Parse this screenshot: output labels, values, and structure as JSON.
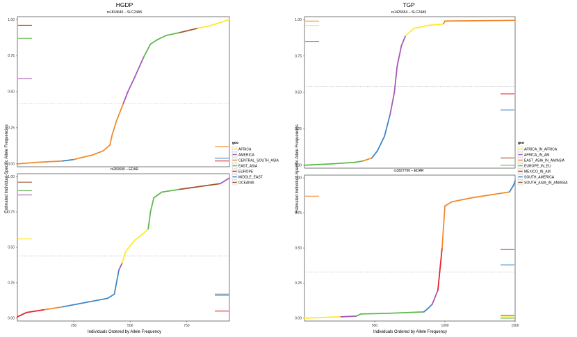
{
  "chart_data": [
    {
      "type": "scatter",
      "title": "HGDP",
      "xlabel": "Individuals Ordered by Allele Frequency",
      "ylabel": "Estimated Individual-Specific Allele Frequencies",
      "xlim": [
        0,
        940
      ],
      "xticks": [
        250,
        500,
        750
      ],
      "ylim": [
        -0.02,
        1.02
      ],
      "yticks": [
        0.0,
        0.25,
        0.5,
        0.75,
        1.0
      ],
      "ytick_labels": [
        "0.00",
        "0.25",
        "0.50",
        "0.75",
        "1.00"
      ],
      "legend": {
        "title": "geo",
        "entries": [
          {
            "name": "AFRICA",
            "color": "#FFEA2B"
          },
          {
            "name": "AMERICA",
            "color": "#A659B8"
          },
          {
            "name": "CENTRAL_SOUTH_ASIA",
            "color": "#F08A2D"
          },
          {
            "name": "EAST_ASIA",
            "color": "#5FB84C"
          },
          {
            "name": "EUROPE",
            "color": "#E4242C"
          },
          {
            "name": "MIDDLE_EAST",
            "color": "#3E86C5"
          },
          {
            "name": "OCEANIA",
            "color": "#A2562F"
          }
        ]
      },
      "panels": [
        {
          "subtitle": "rs1834640 – SLC24A5",
          "mean_line": 0.42,
          "curve": [
            {
              "x": 0,
              "y": 0.0,
              "c": "MIDDLE_EAST"
            },
            {
              "x": 80,
              "y": 0.01,
              "c": "CENTRAL_SOUTH_ASIA"
            },
            {
              "x": 200,
              "y": 0.02,
              "c": "CENTRAL_SOUTH_ASIA"
            },
            {
              "x": 250,
              "y": 0.03,
              "c": "MIDDLE_EAST"
            },
            {
              "x": 300,
              "y": 0.05,
              "c": "CENTRAL_SOUTH_ASIA"
            },
            {
              "x": 330,
              "y": 0.06,
              "c": "CENTRAL_SOUTH_ASIA"
            },
            {
              "x": 380,
              "y": 0.09,
              "c": "CENTRAL_SOUTH_ASIA"
            },
            {
              "x": 410,
              "y": 0.13,
              "c": "CENTRAL_SOUTH_ASIA"
            },
            {
              "x": 420,
              "y": 0.2,
              "c": "CENTRAL_SOUTH_ASIA"
            },
            {
              "x": 440,
              "y": 0.3,
              "c": "CENTRAL_SOUTH_ASIA"
            },
            {
              "x": 470,
              "y": 0.42,
              "c": "CENTRAL_SOUTH_ASIA"
            },
            {
              "x": 490,
              "y": 0.5,
              "c": "AMERICA"
            },
            {
              "x": 520,
              "y": 0.6,
              "c": "AMERICA"
            },
            {
              "x": 560,
              "y": 0.74,
              "c": "AMERICA"
            },
            {
              "x": 590,
              "y": 0.83,
              "c": "EAST_ASIA"
            },
            {
              "x": 620,
              "y": 0.86,
              "c": "EAST_ASIA"
            },
            {
              "x": 660,
              "y": 0.89,
              "c": "EAST_ASIA"
            },
            {
              "x": 720,
              "y": 0.91,
              "c": "EAST_ASIA"
            },
            {
              "x": 800,
              "y": 0.94,
              "c": "OCEANIA"
            },
            {
              "x": 860,
              "y": 0.96,
              "c": "AFRICA"
            },
            {
              "x": 940,
              "y": 1.0,
              "c": "AFRICA"
            }
          ],
          "means": [
            {
              "group": "AFRICA",
              "y": 0.96,
              "side": "left"
            },
            {
              "group": "OCEANIA",
              "y": 0.96,
              "side": "left"
            },
            {
              "group": "EAST_ASIA",
              "y": 0.87,
              "side": "left"
            },
            {
              "group": "AMERICA",
              "y": 0.59,
              "side": "left"
            },
            {
              "group": "CENTRAL_SOUTH_ASIA",
              "y": 0.12,
              "side": "right"
            },
            {
              "group": "MIDDLE_EAST",
              "y": 0.04,
              "side": "right"
            },
            {
              "group": "EUROPE",
              "y": 0.02,
              "side": "right"
            }
          ]
        },
        {
          "subtitle": "rs260690 – EDAR",
          "mean_line": 0.44,
          "curve": [
            {
              "x": 0,
              "y": 0.01,
              "c": "EUROPE"
            },
            {
              "x": 40,
              "y": 0.04,
              "c": "EUROPE"
            },
            {
              "x": 120,
              "y": 0.06,
              "c": "EUROPE"
            },
            {
              "x": 200,
              "y": 0.08,
              "c": "CENTRAL_SOUTH_ASIA"
            },
            {
              "x": 300,
              "y": 0.11,
              "c": "MIDDLE_EAST"
            },
            {
              "x": 400,
              "y": 0.14,
              "c": "MIDDLE_EAST"
            },
            {
              "x": 430,
              "y": 0.17,
              "c": "MIDDLE_EAST"
            },
            {
              "x": 450,
              "y": 0.34,
              "c": "MIDDLE_EAST"
            },
            {
              "x": 465,
              "y": 0.39,
              "c": "AMERICA"
            },
            {
              "x": 480,
              "y": 0.47,
              "c": "AFRICA"
            },
            {
              "x": 520,
              "y": 0.55,
              "c": "AFRICA"
            },
            {
              "x": 560,
              "y": 0.6,
              "c": "AFRICA"
            },
            {
              "x": 580,
              "y": 0.63,
              "c": "AFRICA"
            },
            {
              "x": 590,
              "y": 0.75,
              "c": "EAST_ASIA"
            },
            {
              "x": 605,
              "y": 0.85,
              "c": "EAST_ASIA"
            },
            {
              "x": 640,
              "y": 0.89,
              "c": "EAST_ASIA"
            },
            {
              "x": 720,
              "y": 0.91,
              "c": "EAST_ASIA"
            },
            {
              "x": 900,
              "y": 0.95,
              "c": "OCEANIA"
            },
            {
              "x": 940,
              "y": 0.99,
              "c": "AMERICA"
            }
          ],
          "means": [
            {
              "group": "OCEANIA",
              "y": 0.96,
              "side": "left"
            },
            {
              "group": "EAST_ASIA",
              "y": 0.9,
              "side": "left"
            },
            {
              "group": "AMERICA",
              "y": 0.87,
              "side": "left"
            },
            {
              "group": "AFRICA",
              "y": 0.56,
              "side": "left"
            },
            {
              "group": "MIDDLE_EAST",
              "y": 0.17,
              "side": "right"
            },
            {
              "group": "CENTRAL_SOUTH_ASIA",
              "y": 0.16,
              "side": "right"
            },
            {
              "group": "EUROPE",
              "y": 0.05,
              "side": "right"
            }
          ]
        }
      ]
    },
    {
      "type": "scatter",
      "title": "TGP",
      "xlabel": "Individuals Ordered by Allele Frequency",
      "ylabel": "Estimated Individual-Specific Allele Frequencies",
      "xlim": [
        0,
        1500
      ],
      "xticks": [
        500,
        1000,
        1500
      ],
      "ylim": [
        -0.02,
        1.02
      ],
      "yticks": [
        0.0,
        0.25,
        0.5,
        0.75,
        1.0
      ],
      "ytick_labels": [
        "0.00",
        "0.25",
        "0.50",
        "0.75",
        "1.00"
      ],
      "legend": {
        "title": "geo",
        "entries": [
          {
            "name": "AFRICA_IN_AFRICA",
            "color": "#FFEA2B"
          },
          {
            "name": "AFRICA_IN_AM",
            "color": "#A659B8"
          },
          {
            "name": "EAST_ASIA_IN_AM/ASIA",
            "color": "#F08A2D"
          },
          {
            "name": "EUROPE_IN_EU",
            "color": "#5FB84C"
          },
          {
            "name": "MEXICO_IN_AM",
            "color": "#E4242C"
          },
          {
            "name": "SOUTH_AMERICA",
            "color": "#3E86C5"
          },
          {
            "name": "SOUTH_ASIA_IN_AM/ASIA",
            "color": "#A2562F"
          }
        ]
      },
      "panels": [
        {
          "subtitle": "rs1426654 – SLC24A5",
          "mean_line": 0.54,
          "curve": [
            {
              "x": 0,
              "y": 0.0,
              "c": "EUROPE_IN_EU"
            },
            {
              "x": 200,
              "y": 0.01,
              "c": "EUROPE_IN_EU"
            },
            {
              "x": 360,
              "y": 0.02,
              "c": "EUROPE_IN_EU"
            },
            {
              "x": 420,
              "y": 0.03,
              "c": "EUROPE_IN_EU"
            },
            {
              "x": 480,
              "y": 0.05,
              "c": "EAST_ASIA_IN_AM/ASIA"
            },
            {
              "x": 520,
              "y": 0.1,
              "c": "SOUTH_AMERICA"
            },
            {
              "x": 570,
              "y": 0.2,
              "c": "SOUTH_AMERICA"
            },
            {
              "x": 610,
              "y": 0.35,
              "c": "SOUTH_AMERICA"
            },
            {
              "x": 640,
              "y": 0.5,
              "c": "AFRICA_IN_AM"
            },
            {
              "x": 660,
              "y": 0.68,
              "c": "AFRICA_IN_AM"
            },
            {
              "x": 690,
              "y": 0.82,
              "c": "AFRICA_IN_AM"
            },
            {
              "x": 720,
              "y": 0.89,
              "c": "AFRICA_IN_AM"
            },
            {
              "x": 780,
              "y": 0.94,
              "c": "AFRICA_IN_AFRICA"
            },
            {
              "x": 880,
              "y": 0.96,
              "c": "AFRICA_IN_AFRICA"
            },
            {
              "x": 990,
              "y": 0.97,
              "c": "AFRICA_IN_AFRICA"
            },
            {
              "x": 1000,
              "y": 0.99,
              "c": "EAST_ASIA_IN_AM/ASIA"
            },
            {
              "x": 1500,
              "y": 0.995,
              "c": "EAST_ASIA_IN_AM/ASIA"
            }
          ],
          "means": [
            {
              "group": "EAST_ASIA_IN_AM/ASIA",
              "y": 0.99,
              "side": "left"
            },
            {
              "group": "AFRICA_IN_AFRICA",
              "y": 0.96,
              "side": "left"
            },
            {
              "group": "AFRICA_IN_AM",
              "y": 0.85,
              "side": "left"
            },
            {
              "group": "MEXICO_IN_AM",
              "y": 0.49,
              "side": "right"
            },
            {
              "group": "SOUTH_AMERICA",
              "y": 0.38,
              "side": "right"
            },
            {
              "group": "SOUTH_ASIA_IN_AM/ASIA",
              "y": 0.05,
              "side": "right"
            },
            {
              "group": "EUROPE_IN_EU",
              "y": 0.0,
              "side": "right"
            }
          ]
        },
        {
          "subtitle": "rs3827760 – EDAR",
          "mean_line": 0.33,
          "curve": [
            {
              "x": 0,
              "y": 0.0,
              "c": "EUROPE_IN_EU"
            },
            {
              "x": 120,
              "y": 0.005,
              "c": "AFRICA_IN_AFRICA"
            },
            {
              "x": 260,
              "y": 0.01,
              "c": "AFRICA_IN_AFRICA"
            },
            {
              "x": 370,
              "y": 0.015,
              "c": "AFRICA_IN_AM"
            },
            {
              "x": 400,
              "y": 0.03,
              "c": "EUROPE_IN_EU"
            },
            {
              "x": 600,
              "y": 0.035,
              "c": "EUROPE_IN_EU"
            },
            {
              "x": 850,
              "y": 0.045,
              "c": "EUROPE_IN_EU"
            },
            {
              "x": 880,
              "y": 0.07,
              "c": "SOUTH_AMERICA"
            },
            {
              "x": 910,
              "y": 0.1,
              "c": "SOUTH_AMERICA"
            },
            {
              "x": 950,
              "y": 0.2,
              "c": "AFRICA_IN_AM"
            },
            {
              "x": 980,
              "y": 0.5,
              "c": "MEXICO_IN_AM"
            },
            {
              "x": 1000,
              "y": 0.8,
              "c": "EAST_ASIA_IN_AM/ASIA"
            },
            {
              "x": 1050,
              "y": 0.83,
              "c": "EAST_ASIA_IN_AM/ASIA"
            },
            {
              "x": 1200,
              "y": 0.86,
              "c": "EAST_ASIA_IN_AM/ASIA"
            },
            {
              "x": 1460,
              "y": 0.9,
              "c": "EAST_ASIA_IN_AM/ASIA"
            },
            {
              "x": 1490,
              "y": 0.95,
              "c": "SOUTH_AMERICA"
            },
            {
              "x": 1500,
              "y": 0.98,
              "c": "SOUTH_AMERICA"
            }
          ],
          "means": [
            {
              "group": "EAST_ASIA_IN_AM/ASIA",
              "y": 0.87,
              "side": "left"
            },
            {
              "group": "MEXICO_IN_AM",
              "y": 0.49,
              "side": "right"
            },
            {
              "group": "SOUTH_AMERICA",
              "y": 0.38,
              "side": "right"
            },
            {
              "group": "AFRICA_IN_AFRICA",
              "y": 0.01,
              "side": "right"
            },
            {
              "group": "SOUTH_ASIA_IN_AM/ASIA",
              "y": 0.02,
              "side": "right"
            },
            {
              "group": "EUROPE_IN_EU",
              "y": 0.0,
              "side": "right"
            }
          ]
        }
      ]
    }
  ]
}
